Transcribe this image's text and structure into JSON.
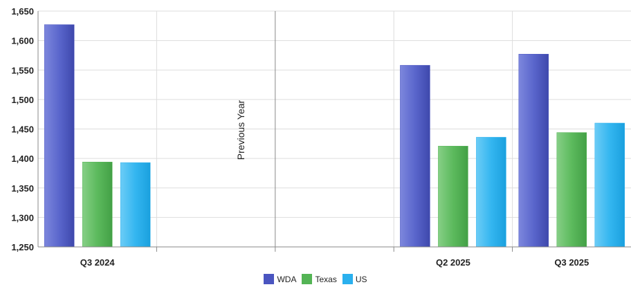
{
  "chart_data": {
    "type": "bar",
    "categories": [
      "Q3 2024",
      "",
      "",
      "Q2 2025",
      "Q3 2025"
    ],
    "series": [
      {
        "name": "WDA",
        "color": "#4a55c0",
        "values": [
          1627,
          null,
          null,
          1558,
          1577
        ]
      },
      {
        "name": "Texas",
        "color": "#54b455",
        "values": [
          1394,
          null,
          null,
          1421,
          1444
        ]
      },
      {
        "name": "US",
        "color": "#2ab0ee",
        "values": [
          1393,
          null,
          null,
          1436,
          1460
        ]
      }
    ],
    "ylim": [
      1250,
      1650
    ],
    "yticks": [
      "1,250",
      "1,300",
      "1,350",
      "1,400",
      "1,450",
      "1,500",
      "1,550",
      "1,600",
      "1,650"
    ],
    "annotation": "Previous Year",
    "grid": true,
    "legend_position": "bottom"
  }
}
